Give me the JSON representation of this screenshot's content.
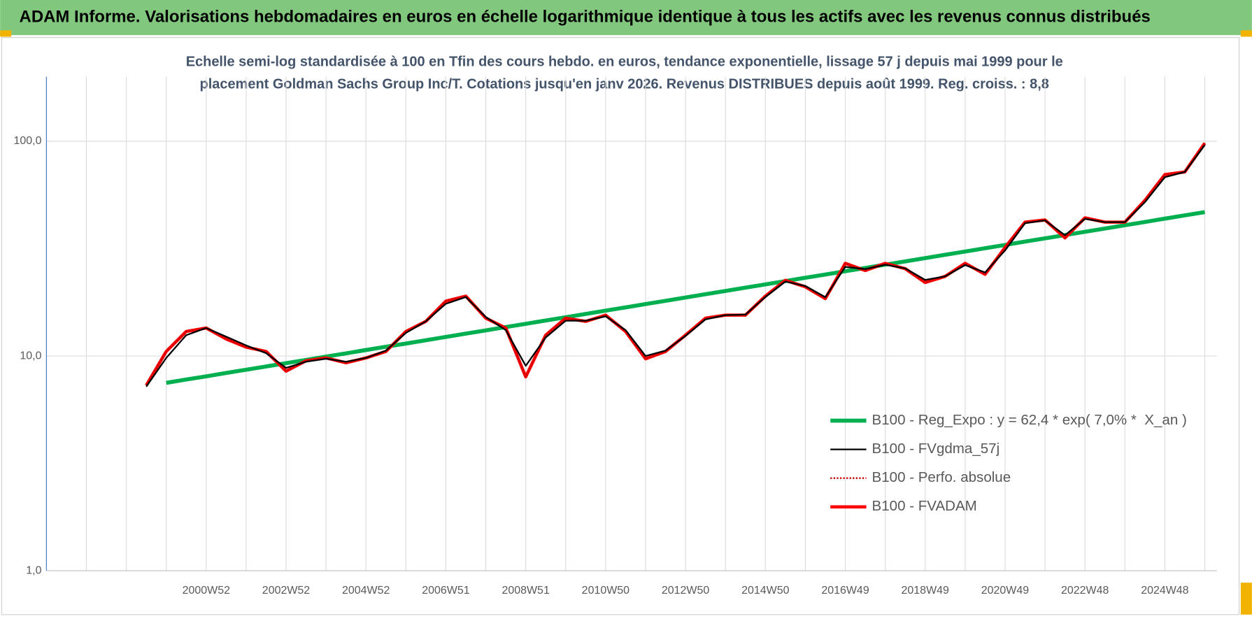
{
  "chart_data": {
    "type": "line",
    "title": "ADAM Informe. Valorisations hebdomadaires en euros en échelle logarithmique identique à tous les actifs avec les revenus connus distribués",
    "subtitle": [
      "Echelle semi-log standardisée à 100 en Tfin des cours hebdo. en euros, tendance exponentielle, lissage 57 j depuis mai 1999 pour le",
      "placement Goldman Sachs Group Inc/T. Cotations jusqu'en janv 2026. Revenus DISTRIBUES depuis août 1999. Reg. croiss. : 8,8"
    ],
    "log_scale": true,
    "grid": true,
    "ylim": [
      1,
      200
    ],
    "yticks": [
      {
        "value": 1,
        "label": "1,0"
      },
      {
        "value": 10,
        "label": "10,0"
      },
      {
        "value": 100,
        "label": "100,0"
      }
    ],
    "categories": [
      null,
      null,
      null,
      null,
      null,
      null,
      null,
      null,
      "2000W52",
      null,
      null,
      null,
      "2002W52",
      null,
      null,
      null,
      "2004W52",
      null,
      null,
      null,
      "2006W51",
      null,
      null,
      null,
      "2008W51",
      null,
      null,
      null,
      "2010W50",
      null,
      null,
      null,
      "2012W50",
      null,
      null,
      null,
      "2014W50",
      null,
      null,
      null,
      "2016W49",
      null,
      null,
      null,
      "2018W49",
      null,
      null,
      null,
      "2020W49",
      null,
      null,
      null,
      "2022W48",
      null,
      null,
      null,
      "2024W48",
      null,
      null
    ],
    "series": [
      {
        "name": "B100 - Reg_Expo : y = 62,4 * exp( 7,0% *  X_an )",
        "color": "#00b050",
        "style": "solid",
        "width": 5,
        "values": [
          null,
          null,
          null,
          null,
          null,
          null,
          7.5,
          7.77,
          8.04,
          8.33,
          8.63,
          8.94,
          9.26,
          9.59,
          9.93,
          10.29,
          10.66,
          11.04,
          11.43,
          11.84,
          12.27,
          12.71,
          13.16,
          13.63,
          14.12,
          14.63,
          15.15,
          15.7,
          16.26,
          16.84,
          17.45,
          18.07,
          18.72,
          19.39,
          20.09,
          20.81,
          21.55,
          22.33,
          23.13,
          23.96,
          24.82,
          25.71,
          26.63,
          27.58,
          28.57,
          29.6,
          30.66,
          31.76,
          32.9,
          34.08,
          35.3,
          36.56,
          37.88,
          39.23,
          40.64,
          42.1,
          43.61,
          45.17,
          46.79
        ]
      },
      {
        "name": "B100 - FVgdma_57j",
        "color": "#000000",
        "style": "solid",
        "width": 2,
        "values": [
          null,
          null,
          null,
          null,
          null,
          7.2,
          9.8,
          12.5,
          13.5,
          12.3,
          11.2,
          10.3,
          8.8,
          9.4,
          9.7,
          9.4,
          9.8,
          10.6,
          12.8,
          14.5,
          17.5,
          18.8,
          15.2,
          13.2,
          9,
          12.2,
          14.6,
          14.6,
          15.3,
          13.2,
          10,
          10.6,
          12.4,
          14.8,
          15.5,
          15.6,
          18.8,
          22.2,
          21.2,
          18.8,
          26,
          25.4,
          26.6,
          25.6,
          22.6,
          23.5,
          26.5,
          24.5,
          31,
          41.5,
          42.8,
          36.5,
          43.5,
          42,
          42,
          52,
          68,
          72,
          96
        ]
      },
      {
        "name": "B100 - Perfo. absolue",
        "color": "#c00000",
        "style": "dotted",
        "width": 2,
        "values": [
          null,
          null,
          null,
          null,
          null,
          7.3,
          10.5,
          13,
          13.5,
          12,
          11,
          10.5,
          8.5,
          9.5,
          9.8,
          9.3,
          9.8,
          10.5,
          13,
          14.5,
          18,
          19,
          15,
          13.5,
          8,
          12.5,
          15,
          14.5,
          15.5,
          13,
          9.7,
          10.5,
          12.5,
          15,
          15.5,
          15.5,
          19,
          22.5,
          21,
          18.5,
          27,
          25,
          27,
          25.5,
          22,
          23.5,
          27,
          24,
          32,
          42,
          43,
          35.5,
          44,
          42,
          42,
          53,
          70,
          72,
          98
        ]
      },
      {
        "name": "B100 - FVADAM",
        "color": "#ff0000",
        "style": "solid",
        "width": 4,
        "values": [
          null,
          null,
          null,
          null,
          null,
          7.3,
          10.5,
          13,
          13.5,
          12,
          11,
          10.5,
          8.5,
          9.5,
          9.8,
          9.3,
          9.8,
          10.5,
          13,
          14.5,
          18,
          19,
          15,
          13.5,
          8,
          12.5,
          15,
          14.5,
          15.5,
          13,
          9.7,
          10.5,
          12.5,
          15,
          15.5,
          15.5,
          19,
          22.5,
          21,
          18.5,
          27,
          25,
          27,
          25.5,
          22,
          23.5,
          27,
          24,
          32,
          42,
          43,
          35.5,
          44,
          42,
          42,
          53,
          70,
          72,
          98
        ]
      }
    ]
  }
}
